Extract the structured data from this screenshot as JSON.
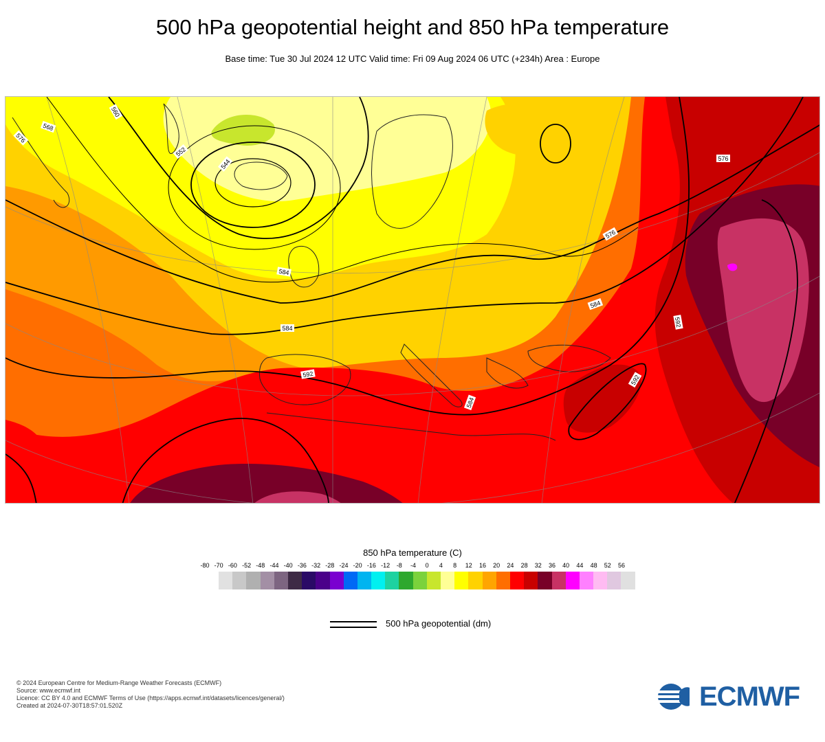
{
  "title": "500 hPa geopotential height and 850 hPa temperature",
  "subtitle": "Base time: Tue 30 Jul 2024 12 UTC Valid time: Fri 09 Aug 2024 06 UTC (+234h) Area : Europe",
  "map": {
    "contour_labels": [
      "568",
      "560",
      "576",
      "584",
      "552",
      "544",
      "576",
      "584",
      "592",
      "584",
      "584",
      "576",
      "592",
      "592"
    ]
  },
  "legend": {
    "title": "850 hPa temperature (C)",
    "ticks": [
      "-80",
      "-70",
      "-60",
      "-52",
      "-48",
      "-44",
      "-40",
      "-36",
      "-32",
      "-28",
      "-24",
      "-20",
      "-16",
      "-12",
      "-8",
      "-4",
      "0",
      "4",
      "8",
      "12",
      "16",
      "20",
      "24",
      "28",
      "32",
      "36",
      "40",
      "44",
      "48",
      "52",
      "56"
    ],
    "colors": [
      "#e1e1e1",
      "#c8c8c8",
      "#b0b0b0",
      "#a38fa5",
      "#7d6581",
      "#3e2a45",
      "#2a0a66",
      "#4b008a",
      "#7a00d0",
      "#0069f5",
      "#00b4f0",
      "#00f0f0",
      "#1ed2a0",
      "#2ea82e",
      "#7bd23c",
      "#c8e62d",
      "#ffff96",
      "#ffff00",
      "#ffd200",
      "#ffa500",
      "#ff6e00",
      "#ff0000",
      "#c80000",
      "#780028",
      "#c83264",
      "#ff00ff",
      "#ff80ff",
      "#ffbbf2",
      "#e0c8e0",
      "#e0e0e0"
    ],
    "geopotential_label": "500 hPa geopotential (dm)"
  },
  "credits": [
    "© 2024 European Centre for Medium-Range Weather Forecasts (ECMWF)",
    "Source: www.ecmwf.int",
    "Licence: CC BY 4.0 and ECMWF Terms of Use (https://apps.ecmwf.int/datasets/licences/general/)",
    "Created at 2024-07-30T18:57:01.520Z"
  ],
  "logo": {
    "text": "ECMWF",
    "color": "#1f5fa3"
  }
}
